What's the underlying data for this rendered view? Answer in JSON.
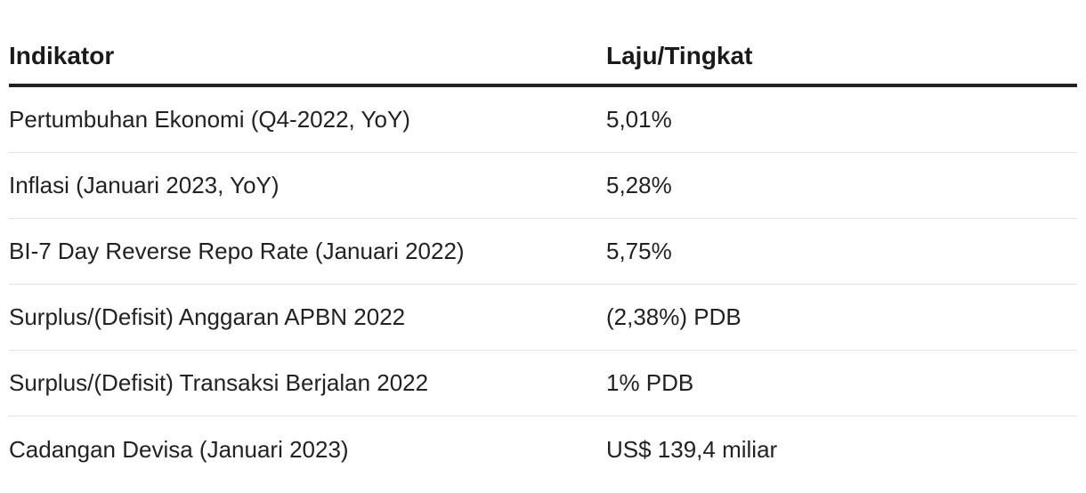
{
  "table": {
    "headers": {
      "indicator": "Indikator",
      "rate": "Laju/Tingkat"
    },
    "rows": [
      {
        "indicator": "Pertumbuhan Ekonomi (Q4-2022, YoY)",
        "rate": "5,01%"
      },
      {
        "indicator": "Inflasi (Januari 2023, YoY)",
        "rate": "5,28%"
      },
      {
        "indicator": "BI-7 Day Reverse Repo Rate (Januari 2022)",
        "rate": "5,75%"
      },
      {
        "indicator": "Surplus/(Defisit) Anggaran APBN 2022",
        "rate": "(2,38%) PDB"
      },
      {
        "indicator": "Surplus/(Defisit) Transaksi Berjalan 2022",
        "rate": "1% PDB"
      },
      {
        "indicator": "Cadangan Devisa (Januari 2023)",
        "rate": "US$ 139,4 miliar"
      }
    ]
  }
}
